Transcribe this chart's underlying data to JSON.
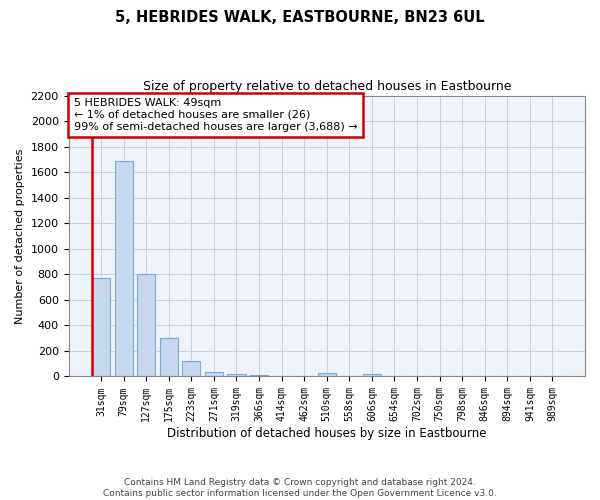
{
  "title": "5, HEBRIDES WALK, EASTBOURNE, BN23 6UL",
  "subtitle": "Size of property relative to detached houses in Eastbourne",
  "xlabel": "Distribution of detached houses by size in Eastbourne",
  "ylabel": "Number of detached properties",
  "categories": [
    "31sqm",
    "79sqm",
    "127sqm",
    "175sqm",
    "223sqm",
    "271sqm",
    "319sqm",
    "366sqm",
    "414sqm",
    "462sqm",
    "510sqm",
    "558sqm",
    "606sqm",
    "654sqm",
    "702sqm",
    "750sqm",
    "798sqm",
    "846sqm",
    "894sqm",
    "941sqm",
    "989sqm"
  ],
  "values": [
    770,
    1690,
    800,
    300,
    120,
    38,
    22,
    10,
    0,
    0,
    25,
    0,
    22,
    0,
    0,
    0,
    0,
    0,
    0,
    0,
    0
  ],
  "bar_color": "#c5d8ef",
  "bar_edge_color": "#7aadd4",
  "property_line_color": "#cc0000",
  "annotation_text": "5 HEBRIDES WALK: 49sqm\n← 1% of detached houses are smaller (26)\n99% of semi-detached houses are larger (3,688) →",
  "annotation_box_color": "#ffffff",
  "annotation_box_edge": "#cc0000",
  "ylim": [
    0,
    2200
  ],
  "yticks": [
    0,
    200,
    400,
    600,
    800,
    1000,
    1200,
    1400,
    1600,
    1800,
    2000,
    2200
  ],
  "footer": "Contains HM Land Registry data © Crown copyright and database right 2024.\nContains public sector information licensed under the Open Government Licence v3.0.",
  "bg_color": "#ffffff",
  "plot_bg_color": "#eef2fa",
  "grid_color": "#c8d0e0"
}
